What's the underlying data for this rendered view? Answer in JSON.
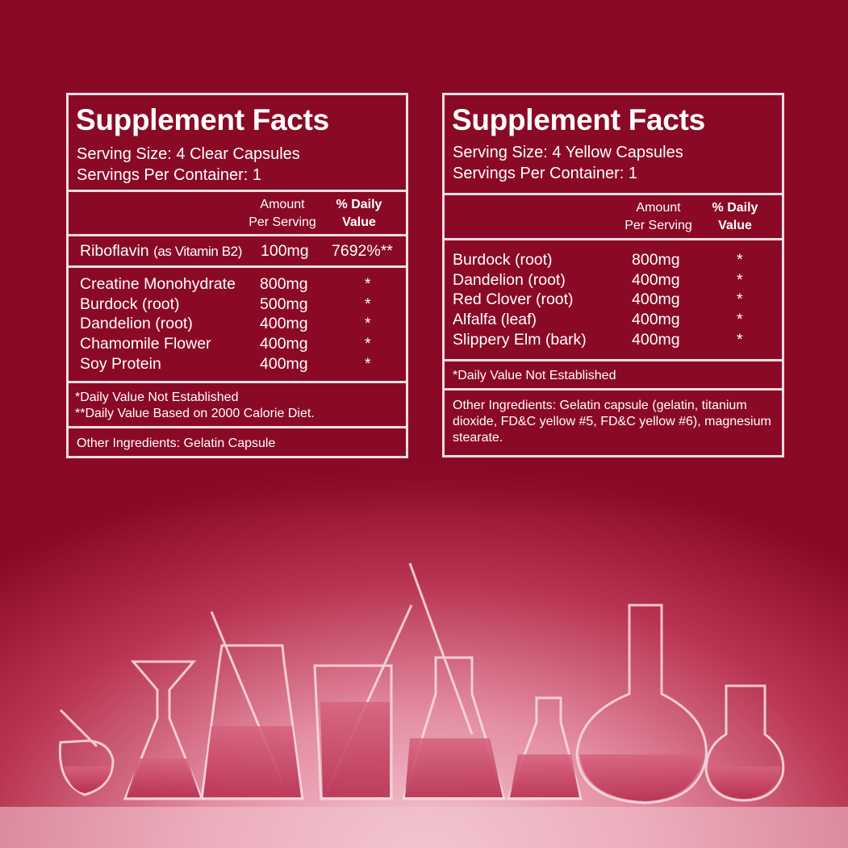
{
  "left_panel": {
    "title": "Supplement Facts",
    "serving_size": "Serving Size: 4 Clear Capsules",
    "servings_per_container": "Servings Per Container: 1",
    "col_amount": [
      "Amount",
      "Per Serving"
    ],
    "col_dv": [
      "% Daily",
      "Value"
    ],
    "riboflavin": {
      "name": "Riboflavin",
      "name_note": "(as Vitamin B2)",
      "amount": "100mg",
      "dv": "7692%**"
    },
    "ingredients": [
      {
        "name": "Creatine Monohydrate",
        "amount": "800mg",
        "dv": "*"
      },
      {
        "name": "Burdock (root)",
        "amount": "500mg",
        "dv": "*"
      },
      {
        "name": "Dandelion (root)",
        "amount": "400mg",
        "dv": "*"
      },
      {
        "name": "Chamomile Flower",
        "amount": "400mg",
        "dv": "*"
      },
      {
        "name": "Soy Protein",
        "amount": "400mg",
        "dv": "*"
      }
    ],
    "footnotes": [
      "*Daily Value Not Established",
      "**Daily Value Based on 2000 Calorie Diet."
    ],
    "other_ingredients": "Other Ingredients:  Gelatin Capsule"
  },
  "right_panel": {
    "title": "Supplement Facts",
    "serving_size": "Serving Size: 4 Yellow Capsules",
    "servings_per_container": "Servings Per Container: 1",
    "col_amount": [
      "Amount",
      "Per Serving"
    ],
    "col_dv": [
      "% Daily",
      "Value"
    ],
    "ingredients": [
      {
        "name": "Burdock (root)",
        "amount": "800mg",
        "dv": "*"
      },
      {
        "name": "Dandelion (root)",
        "amount": "400mg",
        "dv": "*"
      },
      {
        "name": "Red Clover (root)",
        "amount": "400mg",
        "dv": "*"
      },
      {
        "name": "Alfalfa (leaf)",
        "amount": "400mg",
        "dv": "*"
      },
      {
        "name": "Slippery Elm (bark)",
        "amount": "400mg",
        "dv": "*"
      }
    ],
    "footnotes": [
      "*Daily Value Not Established"
    ],
    "other_ingredients": "Other Ingredients:  Gelatin capsule (gelatin, titanium dioxide, FD&C yellow #5, FD&C yellow #6), magnesium stearate."
  },
  "colors": {
    "background": "#8a0a26",
    "border": "#f3dfe3",
    "glass": "#f6d3db"
  }
}
